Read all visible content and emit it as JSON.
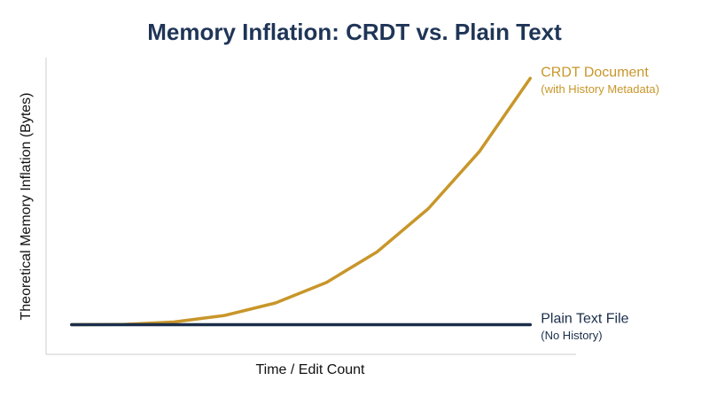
{
  "chart_data": {
    "type": "line",
    "title": "Memory Inflation: CRDT vs. Plain Text",
    "x_label": "Time / Edit Count",
    "y_label": "Theoretical Memory Inflation (Bytes)",
    "x": [
      0.5,
      1.5,
      2.5,
      3.5,
      4.5,
      5.5,
      6.5,
      7.5,
      8.5,
      9.5
    ],
    "series": [
      {
        "name": "CRDT Document",
        "sublabel": "(with History Metadata)",
        "color": "#c8962a",
        "values": [
          10,
          10.1,
          10.9,
          13.1,
          17.3,
          24.2,
          34.6,
          49.1,
          68.3,
          93
        ]
      },
      {
        "name": "Plain Text File",
        "sublabel": "(No History)",
        "color": "#1b2e4b",
        "values": [
          10,
          10,
          10,
          10,
          10,
          10,
          10,
          10,
          10,
          10
        ]
      }
    ],
    "xlim": [
      0,
      10.4
    ],
    "ylim": [
      0,
      100
    ]
  }
}
